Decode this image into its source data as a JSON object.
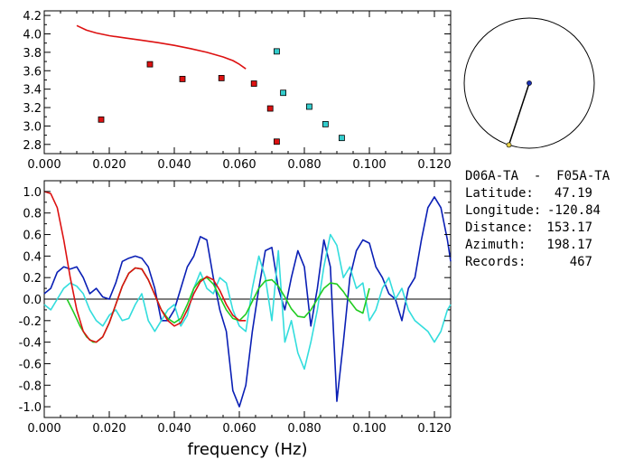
{
  "info": {
    "station_pair": "D06A-TA  -  F05A-TA",
    "latitude_label": "Latitude:",
    "latitude": "47.19",
    "longitude_label": "Longitude:",
    "longitude": "-120.84",
    "distance_label": "Distance:",
    "distance": "153.17",
    "azimuth_label": "Azimuth:",
    "azimuth": "198.17",
    "records_label": "Records:",
    "records": "467"
  },
  "compass": {
    "azimuth_deg": 198.17,
    "colors": {
      "center": "#1a2fb0",
      "end": "#e8d24a"
    }
  },
  "chart_data": [
    {
      "type": "scatter",
      "title": "",
      "xlabel": "",
      "ylabel": "",
      "xlim": [
        0,
        0.125
      ],
      "ylim": [
        2.7,
        4.25
      ],
      "xticks": [
        "0.000",
        "0.020",
        "0.040",
        "0.060",
        "0.080",
        "0.100",
        "0.120"
      ],
      "yticks": [
        "2.8",
        "3.0",
        "3.2",
        "3.4",
        "3.6",
        "3.8",
        "4.0",
        "4.2"
      ],
      "series": [
        {
          "color": "#dd1111",
          "marker": "line",
          "x": [
            0.01,
            0.013,
            0.016,
            0.02,
            0.025,
            0.03,
            0.035,
            0.04,
            0.045,
            0.05,
            0.055,
            0.058,
            0.06,
            0.062
          ],
          "y": [
            4.09,
            4.04,
            4.01,
            3.98,
            3.955,
            3.93,
            3.905,
            3.875,
            3.84,
            3.8,
            3.75,
            3.71,
            3.67,
            3.62
          ]
        },
        {
          "color": "#dd1111",
          "marker": "square",
          "x": [
            0.0175,
            0.0325,
            0.0425,
            0.0545,
            0.0645,
            0.0695,
            0.0715
          ],
          "y": [
            3.07,
            3.67,
            3.51,
            3.52,
            3.46,
            3.19,
            2.83
          ]
        },
        {
          "color": "#33cccc",
          "marker": "square",
          "x": [
            0.0715,
            0.0735,
            0.0815,
            0.0865,
            0.0915
          ],
          "y": [
            3.81,
            3.36,
            3.21,
            3.02,
            2.87
          ]
        }
      ]
    },
    {
      "type": "line",
      "title": "",
      "xlabel": "frequency (Hz)",
      "ylabel": "",
      "xlim": [
        0,
        0.125
      ],
      "ylim": [
        -1.1,
        1.1
      ],
      "zero_line": true,
      "xticks": [
        "0.000",
        "0.020",
        "0.040",
        "0.060",
        "0.080",
        "0.100",
        "0.120"
      ],
      "yticks": [
        "1.0",
        "0.8",
        "0.6",
        "0.4",
        "0.2",
        "0.0",
        "-0.2",
        "-0.4",
        "-0.6",
        "-0.8",
        "-1.0"
      ],
      "series": [
        {
          "color": "#0a1fb5",
          "x": [
            0.0,
            0.002,
            0.004,
            0.006,
            0.008,
            0.01,
            0.012,
            0.014,
            0.016,
            0.018,
            0.02,
            0.022,
            0.024,
            0.026,
            0.028,
            0.03,
            0.032,
            0.034,
            0.036,
            0.038,
            0.04,
            0.042,
            0.044,
            0.046,
            0.048,
            0.05,
            0.052,
            0.054,
            0.056,
            0.058,
            0.06,
            0.062,
            0.064,
            0.066,
            0.068,
            0.07,
            0.072,
            0.074,
            0.076,
            0.078,
            0.08,
            0.082,
            0.084,
            0.086,
            0.088,
            0.09,
            0.092,
            0.094,
            0.096,
            0.098,
            0.1,
            0.102,
            0.104,
            0.106,
            0.108,
            0.11,
            0.112,
            0.114,
            0.116,
            0.118,
            0.12,
            0.122,
            0.124,
            0.125
          ],
          "y": [
            0.05,
            0.1,
            0.25,
            0.3,
            0.28,
            0.3,
            0.2,
            0.05,
            0.1,
            0.02,
            0.0,
            0.15,
            0.35,
            0.38,
            0.4,
            0.38,
            0.3,
            0.1,
            -0.2,
            -0.2,
            -0.1,
            0.1,
            0.3,
            0.4,
            0.58,
            0.55,
            0.2,
            -0.1,
            -0.3,
            -0.85,
            -1.0,
            -0.8,
            -0.3,
            0.1,
            0.45,
            0.48,
            0.1,
            -0.1,
            0.2,
            0.45,
            0.3,
            -0.25,
            0.1,
            0.55,
            0.3,
            -0.95,
            -0.4,
            0.2,
            0.45,
            0.55,
            0.52,
            0.3,
            0.2,
            0.05,
            0.0,
            -0.2,
            0.1,
            0.2,
            0.55,
            0.85,
            0.95,
            0.85,
            0.55,
            0.35
          ]
        },
        {
          "color": "#33dddd",
          "x": [
            0.0,
            0.002,
            0.004,
            0.006,
            0.008,
            0.01,
            0.012,
            0.014,
            0.016,
            0.018,
            0.02,
            0.022,
            0.024,
            0.026,
            0.028,
            0.03,
            0.032,
            0.034,
            0.036,
            0.038,
            0.04,
            0.042,
            0.044,
            0.046,
            0.048,
            0.05,
            0.052,
            0.054,
            0.056,
            0.058,
            0.06,
            0.062,
            0.064,
            0.066,
            0.068,
            0.07,
            0.072,
            0.074,
            0.076,
            0.078,
            0.08,
            0.082,
            0.084,
            0.086,
            0.088,
            0.09,
            0.092,
            0.094,
            0.096,
            0.098,
            0.1,
            0.102,
            0.104,
            0.106,
            0.108,
            0.11,
            0.112,
            0.114,
            0.116,
            0.118,
            0.12,
            0.122,
            0.124,
            0.125
          ],
          "y": [
            -0.05,
            -0.1,
            0.0,
            0.1,
            0.15,
            0.12,
            0.05,
            -0.1,
            -0.2,
            -0.25,
            -0.15,
            -0.1,
            -0.2,
            -0.18,
            -0.05,
            0.05,
            -0.2,
            -0.3,
            -0.2,
            -0.1,
            -0.05,
            -0.25,
            -0.15,
            0.1,
            0.25,
            0.1,
            0.05,
            0.2,
            0.15,
            -0.1,
            -0.25,
            -0.3,
            0.1,
            0.4,
            0.2,
            -0.2,
            0.45,
            -0.4,
            -0.2,
            -0.5,
            -0.65,
            -0.4,
            -0.1,
            0.3,
            0.6,
            0.5,
            0.2,
            0.3,
            0.1,
            0.15,
            -0.2,
            -0.1,
            0.1,
            0.2,
            0.0,
            0.1,
            -0.1,
            -0.2,
            -0.25,
            -0.3,
            -0.4,
            -0.3,
            -0.1,
            -0.05
          ]
        },
        {
          "color": "#22cc22",
          "x": [
            0.007,
            0.009,
            0.011,
            0.013,
            0.015,
            0.016,
            0.018,
            0.02,
            0.022,
            0.024,
            0.026,
            0.028,
            0.03,
            0.032,
            0.034,
            0.036,
            0.038,
            0.04,
            0.042,
            0.044,
            0.046,
            0.048,
            0.05,
            0.052,
            0.054,
            0.056,
            0.058,
            0.06,
            0.062,
            0.064,
            0.066,
            0.068,
            0.07,
            0.072,
            0.074,
            0.076,
            0.078,
            0.08,
            0.082,
            0.084,
            0.086,
            0.088,
            0.09,
            0.092,
            0.094,
            0.096,
            0.098,
            0.1
          ],
          "y": [
            0.0,
            -0.12,
            -0.25,
            -0.35,
            -0.4,
            -0.4,
            -0.35,
            -0.22,
            -0.05,
            0.12,
            0.24,
            0.29,
            0.28,
            0.18,
            0.04,
            -0.1,
            -0.18,
            -0.22,
            -0.18,
            -0.05,
            0.1,
            0.18,
            0.2,
            0.14,
            0.02,
            -0.1,
            -0.18,
            -0.2,
            -0.14,
            -0.02,
            0.1,
            0.17,
            0.18,
            0.12,
            0.02,
            -0.09,
            -0.16,
            -0.17,
            -0.1,
            0.0,
            0.1,
            0.15,
            0.14,
            0.07,
            -0.02,
            -0.1,
            -0.13,
            0.1
          ]
        },
        {
          "color": "#dd1111",
          "x": [
            0.0,
            0.002,
            0.004,
            0.006,
            0.008,
            0.01,
            0.012,
            0.014,
            0.016,
            0.018,
            0.02,
            0.022,
            0.024,
            0.026,
            0.028,
            0.03,
            0.032,
            0.034,
            0.036,
            0.038,
            0.04,
            0.042,
            0.044,
            0.046,
            0.048,
            0.05,
            0.052,
            0.054,
            0.056,
            0.058,
            0.06,
            0.062
          ],
          "y": [
            1.0,
            0.98,
            0.85,
            0.55,
            0.2,
            -0.1,
            -0.3,
            -0.38,
            -0.4,
            -0.35,
            -0.22,
            -0.05,
            0.12,
            0.24,
            0.29,
            0.28,
            0.18,
            0.04,
            -0.1,
            -0.2,
            -0.25,
            -0.22,
            -0.1,
            0.05,
            0.16,
            0.21,
            0.18,
            0.08,
            -0.05,
            -0.15,
            -0.2,
            -0.2
          ]
        }
      ]
    }
  ]
}
